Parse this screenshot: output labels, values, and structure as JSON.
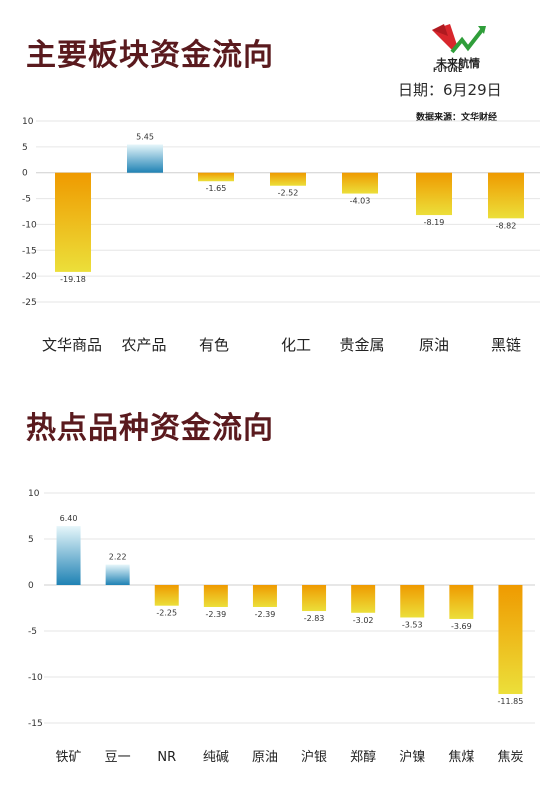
{
  "header": {
    "title1": "主要板块资金流向",
    "title2": "热点品种资金流向",
    "date": "日期：6月29日",
    "source": "数据来源：文华财经",
    "logo_text": "未来航情",
    "logo_sub": "FUTURE"
  },
  "colors": {
    "title": "#5a1a1e",
    "positive_top": "#e6f6fa",
    "positive_bottom": "#1f82b4",
    "negative_top": "#ef9a00",
    "negative_bottom": "#ecdf3a",
    "band_light": "#a9dbe6",
    "band_dark": "#2f9ec7"
  },
  "chart_data": [
    {
      "type": "bar",
      "categories": [
        "文华商品",
        "农产品",
        "有色",
        "化工",
        "贵金属",
        "原油",
        "黑链"
      ],
      "values": [
        -19.18,
        5.45,
        -1.65,
        -2.52,
        -4.03,
        -8.19,
        -8.82
      ],
      "yticks": [
        10,
        5,
        0,
        -5,
        -10,
        -15,
        -20,
        -25
      ],
      "ylim": [
        -25,
        10
      ],
      "grid": true
    },
    {
      "type": "bar",
      "categories": [
        "铁矿",
        "豆一",
        "NR",
        "纯碱",
        "原油",
        "沪银",
        "郑醇",
        "沪镍",
        "焦煤",
        "焦炭"
      ],
      "values": [
        6.4,
        2.22,
        -2.25,
        -2.39,
        -2.39,
        -2.83,
        -3.02,
        -3.53,
        -3.69,
        -11.85
      ],
      "labels": [
        "6.40",
        "2.22",
        "-2.25",
        "-2.39",
        "-2.39",
        "-2.83",
        "-3.02",
        "-3.53",
        "-3.69",
        "-11.85"
      ],
      "yticks": [
        10,
        5,
        0,
        -5,
        -10,
        -15
      ],
      "ylim": [
        -15,
        10
      ],
      "grid": true
    }
  ]
}
